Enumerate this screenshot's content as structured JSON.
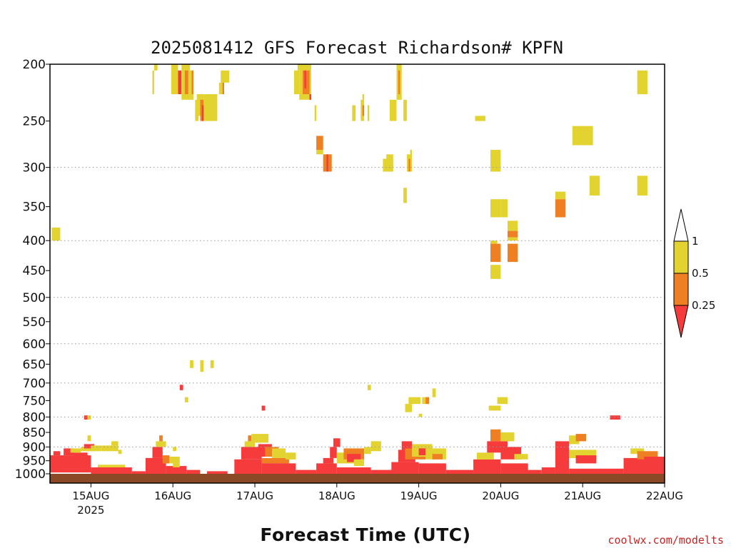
{
  "chart_data": {
    "type": "heatmap",
    "title": "2025081412 GFS Forecast Richardson# KPFN",
    "xlabel": "Forecast Time (UTC)",
    "ylabel": "",
    "x_axis": {
      "unit": "hours_from_15AUG_00Z",
      "range": [
        -12,
        168
      ],
      "ticks": [
        {
          "x": 0,
          "label": "15AUG",
          "sublabel": "2025"
        },
        {
          "x": 24,
          "label": "16AUG"
        },
        {
          "x": 48,
          "label": "17AUG"
        },
        {
          "x": 72,
          "label": "18AUG"
        },
        {
          "x": 96,
          "label": "19AUG"
        },
        {
          "x": 120,
          "label": "20AUG"
        },
        {
          "x": 144,
          "label": "21AUG"
        },
        {
          "x": 168,
          "label": "22AUG"
        }
      ]
    },
    "y_axis": {
      "unit": "hPa",
      "scale": "log",
      "reversed": true,
      "range": [
        200,
        1000
      ],
      "ticks": [
        200,
        250,
        300,
        350,
        400,
        450,
        500,
        550,
        600,
        650,
        700,
        750,
        800,
        850,
        900,
        950,
        1000
      ],
      "dotted_gridlines": [
        300,
        400,
        500,
        600,
        700,
        800,
        900
      ]
    },
    "colorbar": {
      "labels": [
        "1",
        "0.5",
        "0.25"
      ],
      "bins": [
        {
          "name": "0.5-1",
          "color": "#e3d331"
        },
        {
          "name": "0.25-0.5",
          "color": "#ee7f22"
        },
        {
          "name": "<0.25",
          "color": "#f53b3b"
        }
      ],
      "above_color": "#ffffff",
      "below_color": "#f53b3b"
    },
    "ground_color": "#8b4a25",
    "cells": [
      {
        "t": -11.5,
        "t2": -9,
        "p": 380,
        "p2": 400,
        "c": "Y"
      },
      {
        "t": 18.5,
        "t2": 19.5,
        "p": 200,
        "p2": 205,
        "c": "Y"
      },
      {
        "t": 18,
        "t2": 18.5,
        "p": 205,
        "p2": 225,
        "c": "Y"
      },
      {
        "t": 23.5,
        "t2": 25.5,
        "p": 200,
        "p2": 225,
        "c": "Y"
      },
      {
        "t": 25.5,
        "t2": 26.5,
        "p": 205,
        "p2": 225,
        "c": "R"
      },
      {
        "t": 26.5,
        "t2": 29,
        "p": 200,
        "p2": 230,
        "c": "Y"
      },
      {
        "t": 27.5,
        "t2": 28.5,
        "p": 205,
        "p2": 225,
        "c": "O"
      },
      {
        "t": 29,
        "t2": 30,
        "p": 205,
        "p2": 230,
        "c": "Y"
      },
      {
        "t": 29.5,
        "t2": 30,
        "p": 205,
        "p2": 225,
        "c": "O"
      },
      {
        "t": 30.5,
        "t2": 31.5,
        "p": 230,
        "p2": 250,
        "c": "Y"
      },
      {
        "t": 31,
        "t2": 33,
        "p": 225,
        "p2": 245,
        "c": "Y"
      },
      {
        "t": 32,
        "t2": 33,
        "p": 230,
        "p2": 250,
        "c": "O"
      },
      {
        "t": 32.5,
        "t2": 33,
        "p": 235,
        "p2": 250,
        "c": "R"
      },
      {
        "t": 33,
        "t2": 37,
        "p": 225,
        "p2": 250,
        "c": "Y"
      },
      {
        "t": 37.5,
        "t2": 38.5,
        "p": 215,
        "p2": 225,
        "c": "Y"
      },
      {
        "t": 38,
        "t2": 40.5,
        "p": 205,
        "p2": 215,
        "c": "Y"
      },
      {
        "t": 38.5,
        "t2": 39,
        "p": 215,
        "p2": 225,
        "c": "O"
      },
      {
        "t": 59.5,
        "t2": 61,
        "p": 205,
        "p2": 225,
        "c": "Y"
      },
      {
        "t": 60.5,
        "t2": 61.5,
        "p": 200,
        "p2": 205,
        "c": "Y"
      },
      {
        "t": 61,
        "t2": 64.5,
        "p": 200,
        "p2": 230,
        "c": "Y"
      },
      {
        "t": 62,
        "t2": 64,
        "p": 205,
        "p2": 225,
        "c": "O"
      },
      {
        "t": 62.5,
        "t2": 63,
        "p": 205,
        "p2": 220,
        "c": "R"
      },
      {
        "t": 64,
        "t2": 64.5,
        "p": 225,
        "p2": 230,
        "c": "R"
      },
      {
        "t": 65.5,
        "t2": 66,
        "p": 235,
        "p2": 250,
        "c": "Y"
      },
      {
        "t": 66,
        "t2": 68,
        "p": 265,
        "p2": 280,
        "c": "O"
      },
      {
        "t": 66,
        "t2": 68,
        "p": 280,
        "p2": 285,
        "c": "Y"
      },
      {
        "t": 68,
        "t2": 70.5,
        "p": 285,
        "p2": 305,
        "c": "O"
      },
      {
        "t": 69,
        "t2": 69.5,
        "p": 285,
        "p2": 305,
        "c": "R"
      },
      {
        "t": 76.5,
        "t2": 77.5,
        "p": 235,
        "p2": 250,
        "c": "Y"
      },
      {
        "t": 79,
        "t2": 80,
        "p": 230,
        "p2": 250,
        "c": "Y"
      },
      {
        "t": 79.5,
        "t2": 80,
        "p": 235,
        "p2": 245,
        "c": "O"
      },
      {
        "t": 79.5,
        "t2": 80,
        "p": 225,
        "p2": 230,
        "c": "Y"
      },
      {
        "t": 81,
        "t2": 81.5,
        "p": 235,
        "p2": 250,
        "c": "Y"
      },
      {
        "t": 85.5,
        "t2": 88.5,
        "p": 290,
        "p2": 305,
        "c": "Y"
      },
      {
        "t": 86.5,
        "t2": 88.5,
        "p": 285,
        "p2": 290,
        "c": "Y"
      },
      {
        "t": 87.5,
        "t2": 89.5,
        "p": 230,
        "p2": 250,
        "c": "Y"
      },
      {
        "t": 89.5,
        "t2": 91,
        "p": 200,
        "p2": 230,
        "c": "Y"
      },
      {
        "t": 90,
        "t2": 90.5,
        "p": 205,
        "p2": 225,
        "c": "O"
      },
      {
        "t": 91.5,
        "t2": 92.5,
        "p": 230,
        "p2": 250,
        "c": "Y"
      },
      {
        "t": 91.5,
        "t2": 92.5,
        "p": 325,
        "p2": 345,
        "c": "Y"
      },
      {
        "t": 92.5,
        "t2": 94,
        "p": 285,
        "p2": 305,
        "c": "Y"
      },
      {
        "t": 93,
        "t2": 93.5,
        "p": 290,
        "p2": 305,
        "c": "O"
      },
      {
        "t": 93.5,
        "t2": 94,
        "p": 280,
        "p2": 285,
        "c": "Y"
      },
      {
        "t": 112.5,
        "t2": 115.5,
        "p": 245,
        "p2": 250,
        "c": "Y"
      },
      {
        "t": 117,
        "t2": 120,
        "p": 280,
        "p2": 305,
        "c": "Y"
      },
      {
        "t": 117,
        "t2": 120,
        "p": 340,
        "p2": 365,
        "c": "Y"
      },
      {
        "t": 117,
        "t2": 119,
        "p": 400,
        "p2": 405,
        "c": "Y"
      },
      {
        "t": 117,
        "t2": 120,
        "p": 405,
        "p2": 435,
        "c": "O"
      },
      {
        "t": 117,
        "t2": 120,
        "p": 440,
        "p2": 465,
        "c": "Y"
      },
      {
        "t": 120,
        "t2": 122,
        "p": 340,
        "p2": 365,
        "c": "Y"
      },
      {
        "t": 122,
        "t2": 125,
        "p": 370,
        "p2": 385,
        "c": "Y"
      },
      {
        "t": 122,
        "t2": 125,
        "p": 385,
        "p2": 395,
        "c": "O"
      },
      {
        "t": 122,
        "t2": 125,
        "p": 395,
        "p2": 400,
        "c": "Y"
      },
      {
        "t": 122,
        "t2": 125,
        "p": 405,
        "p2": 435,
        "c": "O"
      },
      {
        "t": 136,
        "t2": 139,
        "p": 330,
        "p2": 340,
        "c": "Y"
      },
      {
        "t": 136,
        "t2": 139,
        "p": 340,
        "p2": 365,
        "c": "O"
      },
      {
        "t": 141,
        "t2": 147,
        "p": 255,
        "p2": 275,
        "c": "Y"
      },
      {
        "t": 146,
        "t2": 149,
        "p": 310,
        "p2": 335,
        "c": "Y"
      },
      {
        "t": 160,
        "t2": 163,
        "p": 205,
        "p2": 225,
        "c": "Y"
      },
      {
        "t": 160,
        "t2": 163,
        "p": 310,
        "p2": 335,
        "c": "Y"
      },
      {
        "t": 29,
        "t2": 30,
        "p": 640,
        "p2": 660,
        "c": "Y"
      },
      {
        "t": 32,
        "t2": 33,
        "p": 640,
        "p2": 670,
        "c": "Y"
      },
      {
        "t": 35,
        "t2": 36,
        "p": 640,
        "p2": 660,
        "c": "Y"
      },
      {
        "t": 26,
        "t2": 27,
        "p": 705,
        "p2": 720,
        "c": "R"
      },
      {
        "t": 27.5,
        "t2": 28.5,
        "p": 740,
        "p2": 755,
        "c": "Y"
      },
      {
        "t": 50,
        "t2": 51,
        "p": 765,
        "p2": 780,
        "c": "R"
      },
      {
        "t": 81,
        "t2": 82,
        "p": 705,
        "p2": 720,
        "c": "Y"
      },
      {
        "t": -2,
        "t2": -1,
        "p": 795,
        "p2": 808,
        "c": "R"
      },
      {
        "t": -1,
        "t2": 0,
        "p": 795,
        "p2": 808,
        "c": "Y"
      },
      {
        "t": 93,
        "t2": 95,
        "p": 740,
        "p2": 760,
        "c": "Y"
      },
      {
        "t": 92,
        "t2": 94,
        "p": 760,
        "p2": 785,
        "c": "Y"
      },
      {
        "t": 95,
        "t2": 96.5,
        "p": 740,
        "p2": 760,
        "c": "Y"
      },
      {
        "t": 97,
        "t2": 99,
        "p": 740,
        "p2": 760,
        "c": "Y"
      },
      {
        "t": 98,
        "t2": 99,
        "p": 740,
        "p2": 760,
        "c": "O"
      },
      {
        "t": 100,
        "t2": 101,
        "p": 715,
        "p2": 740,
        "c": "Y"
      },
      {
        "t": 96,
        "t2": 97,
        "p": 790,
        "p2": 800,
        "c": "Y"
      },
      {
        "t": 119,
        "t2": 122,
        "p": 740,
        "p2": 760,
        "c": "Y"
      },
      {
        "t": 116.5,
        "t2": 120,
        "p": 765,
        "p2": 780,
        "c": "Y"
      },
      {
        "t": 152,
        "t2": 155,
        "p": 795,
        "p2": 808,
        "c": "R"
      },
      {
        "t": -12,
        "t2": 0,
        "p": 930,
        "p2": 995,
        "c": "R"
      },
      {
        "t": -11,
        "t2": -9,
        "p": 915,
        "p2": 930,
        "c": "R"
      },
      {
        "t": -8,
        "t2": -5,
        "p": 905,
        "p2": 930,
        "c": "R"
      },
      {
        "t": -5,
        "t2": -1,
        "p": 920,
        "p2": 960,
        "c": "R"
      },
      {
        "t": -6,
        "t2": -3,
        "p": 905,
        "p2": 920,
        "c": "Y"
      },
      {
        "t": -3,
        "t2": 1,
        "p": 900,
        "p2": 915,
        "c": "Y"
      },
      {
        "t": -2,
        "t2": 1,
        "p": 890,
        "p2": 905,
        "c": "R"
      },
      {
        "t": -1,
        "t2": 0,
        "p": 860,
        "p2": 880,
        "c": "Y"
      },
      {
        "t": 0,
        "t2": 3,
        "p": 895,
        "p2": 915,
        "c": "Y"
      },
      {
        "t": 3,
        "t2": 8,
        "p": 895,
        "p2": 915,
        "c": "Y"
      },
      {
        "t": 6,
        "t2": 8,
        "p": 880,
        "p2": 895,
        "c": "Y"
      },
      {
        "t": 8,
        "t2": 9,
        "p": 910,
        "p2": 925,
        "c": "Y"
      },
      {
        "t": 0,
        "t2": 12,
        "p": 975,
        "p2": 1000,
        "c": "R"
      },
      {
        "t": 2,
        "t2": 10,
        "p": 965,
        "p2": 975,
        "c": "Y"
      },
      {
        "t": 12,
        "t2": 16,
        "p": 990,
        "p2": 1000,
        "c": "R"
      },
      {
        "t": 16,
        "t2": 22,
        "p": 940,
        "p2": 1000,
        "c": "R"
      },
      {
        "t": 18,
        "t2": 21,
        "p": 900,
        "p2": 940,
        "c": "R"
      },
      {
        "t": 19,
        "t2": 22,
        "p": 880,
        "p2": 900,
        "c": "Y"
      },
      {
        "t": 20,
        "t2": 21,
        "p": 860,
        "p2": 880,
        "c": "O"
      },
      {
        "t": 21,
        "t2": 23,
        "p": 930,
        "p2": 960,
        "c": "O"
      },
      {
        "t": 22,
        "t2": 28,
        "p": 970,
        "p2": 1000,
        "c": "R"
      },
      {
        "t": 23,
        "t2": 26,
        "p": 935,
        "p2": 960,
        "c": "Y"
      },
      {
        "t": 24,
        "t2": 25,
        "p": 900,
        "p2": 915,
        "c": "Y"
      },
      {
        "t": 24,
        "t2": 26,
        "p": 960,
        "p2": 975,
        "c": "Y"
      },
      {
        "t": 28,
        "t2": 32,
        "p": 985,
        "p2": 1000,
        "c": "R"
      },
      {
        "t": 34,
        "t2": 40,
        "p": 990,
        "p2": 1000,
        "c": "R"
      },
      {
        "t": 42,
        "t2": 50,
        "p": 945,
        "p2": 1000,
        "c": "R"
      },
      {
        "t": 44,
        "t2": 50,
        "p": 900,
        "p2": 945,
        "c": "R"
      },
      {
        "t": 45,
        "t2": 48,
        "p": 880,
        "p2": 900,
        "c": "Y"
      },
      {
        "t": 46,
        "t2": 47,
        "p": 860,
        "p2": 880,
        "c": "O"
      },
      {
        "t": 47,
        "t2": 52,
        "p": 855,
        "p2": 885,
        "c": "Y"
      },
      {
        "t": 49,
        "t2": 53,
        "p": 890,
        "p2": 935,
        "c": "R"
      },
      {
        "t": 51,
        "t2": 55,
        "p": 900,
        "p2": 935,
        "c": "O"
      },
      {
        "t": 53,
        "t2": 57,
        "p": 905,
        "p2": 940,
        "c": "Y"
      },
      {
        "t": 50,
        "t2": 58,
        "p": 940,
        "p2": 960,
        "c": "O"
      },
      {
        "t": 50,
        "t2": 60,
        "p": 960,
        "p2": 1000,
        "c": "R"
      },
      {
        "t": 57,
        "t2": 60,
        "p": 920,
        "p2": 945,
        "c": "Y"
      },
      {
        "t": 60,
        "t2": 66,
        "p": 985,
        "p2": 1000,
        "c": "R"
      },
      {
        "t": 66,
        "t2": 72,
        "p": 960,
        "p2": 1000,
        "c": "R"
      },
      {
        "t": 68,
        "t2": 71,
        "p": 940,
        "p2": 960,
        "c": "R"
      },
      {
        "t": 70,
        "t2": 72,
        "p": 900,
        "p2": 940,
        "c": "R"
      },
      {
        "t": 71,
        "t2": 73,
        "p": 870,
        "p2": 900,
        "c": "R"
      },
      {
        "t": 72,
        "t2": 77,
        "p": 920,
        "p2": 960,
        "c": "Y"
      },
      {
        "t": 74,
        "t2": 80,
        "p": 905,
        "p2": 945,
        "c": "O"
      },
      {
        "t": 75,
        "t2": 79,
        "p": 925,
        "p2": 955,
        "c": "R"
      },
      {
        "t": 77,
        "t2": 80,
        "p": 945,
        "p2": 970,
        "c": "Y"
      },
      {
        "t": 72,
        "t2": 82,
        "p": 975,
        "p2": 1000,
        "c": "R"
      },
      {
        "t": 80,
        "t2": 82,
        "p": 900,
        "p2": 925,
        "c": "Y"
      },
      {
        "t": 82,
        "t2": 85,
        "p": 880,
        "p2": 915,
        "c": "Y"
      },
      {
        "t": 82,
        "t2": 90,
        "p": 985,
        "p2": 1000,
        "c": "R"
      },
      {
        "t": 88,
        "t2": 96,
        "p": 955,
        "p2": 1000,
        "c": "R"
      },
      {
        "t": 90,
        "t2": 95,
        "p": 910,
        "p2": 955,
        "c": "R"
      },
      {
        "t": 91,
        "t2": 94,
        "p": 880,
        "p2": 910,
        "c": "R"
      },
      {
        "t": 92,
        "t2": 98,
        "p": 905,
        "p2": 945,
        "c": "O"
      },
      {
        "t": 94,
        "t2": 100,
        "p": 890,
        "p2": 935,
        "c": "Y"
      },
      {
        "t": 96,
        "t2": 100,
        "p": 905,
        "p2": 930,
        "c": "R"
      },
      {
        "t": 98,
        "t2": 104,
        "p": 905,
        "p2": 945,
        "c": "Y"
      },
      {
        "t": 96,
        "t2": 104,
        "p": 960,
        "p2": 1000,
        "c": "R"
      },
      {
        "t": 100,
        "t2": 103,
        "p": 925,
        "p2": 945,
        "c": "O"
      },
      {
        "t": 104,
        "t2": 112,
        "p": 985,
        "p2": 1000,
        "c": "R"
      },
      {
        "t": 112,
        "t2": 120,
        "p": 945,
        "p2": 1000,
        "c": "R"
      },
      {
        "t": 113,
        "t2": 118,
        "p": 920,
        "p2": 945,
        "c": "Y"
      },
      {
        "t": 116,
        "t2": 122,
        "p": 880,
        "p2": 920,
        "c": "R"
      },
      {
        "t": 117,
        "t2": 120,
        "p": 840,
        "p2": 880,
        "c": "O"
      },
      {
        "t": 120,
        "t2": 124,
        "p": 850,
        "p2": 880,
        "c": "Y"
      },
      {
        "t": 120,
        "t2": 126,
        "p": 900,
        "p2": 945,
        "c": "R"
      },
      {
        "t": 124,
        "t2": 128,
        "p": 925,
        "p2": 945,
        "c": "Y"
      },
      {
        "t": 120,
        "t2": 128,
        "p": 960,
        "p2": 1000,
        "c": "R"
      },
      {
        "t": 126,
        "t2": 132,
        "p": 985,
        "p2": 1000,
        "c": "R"
      },
      {
        "t": 132,
        "t2": 136,
        "p": 975,
        "p2": 1000,
        "c": "R"
      },
      {
        "t": 136,
        "t2": 140,
        "p": 880,
        "p2": 1000,
        "c": "R"
      },
      {
        "t": 140,
        "t2": 143,
        "p": 860,
        "p2": 890,
        "c": "Y"
      },
      {
        "t": 142,
        "t2": 145,
        "p": 855,
        "p2": 880,
        "c": "O"
      },
      {
        "t": 140,
        "t2": 148,
        "p": 910,
        "p2": 940,
        "c": "Y"
      },
      {
        "t": 142,
        "t2": 148,
        "p": 930,
        "p2": 960,
        "c": "R"
      },
      {
        "t": 140,
        "t2": 156,
        "p": 980,
        "p2": 1000,
        "c": "R"
      },
      {
        "t": 156,
        "t2": 168,
        "p": 940,
        "p2": 1000,
        "c": "R"
      },
      {
        "t": 158,
        "t2": 162,
        "p": 905,
        "p2": 925,
        "c": "Y"
      },
      {
        "t": 160,
        "t2": 166,
        "p": 915,
        "p2": 945,
        "c": "O"
      },
      {
        "t": 162,
        "t2": 168,
        "p": 935,
        "p2": 960,
        "c": "R"
      }
    ]
  },
  "credit": "coolwx.com/modelts"
}
